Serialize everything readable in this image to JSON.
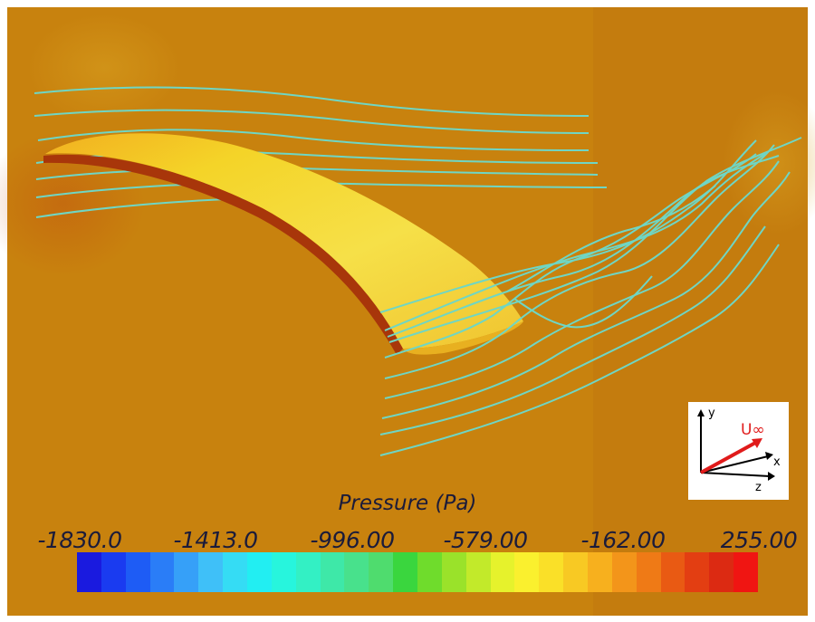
{
  "colorbar": {
    "title": "Pressure (Pa)",
    "ticks": [
      "-1830.0",
      "-1413.0",
      "-996.00",
      "-579.00",
      "-162.00",
      "255.00"
    ],
    "colors": [
      "#1a1adf",
      "#1a3bf0",
      "#1e5cf5",
      "#2a7df7",
      "#36a0f8",
      "#3fc0f8",
      "#35dcf4",
      "#22eef2",
      "#27f5dd",
      "#33f0c4",
      "#3ee8a8",
      "#48e18c",
      "#4fdc6e",
      "#3ad63e",
      "#6fdc2c",
      "#9ae22a",
      "#c2ea2a",
      "#e6f22c",
      "#faf02e",
      "#fae028",
      "#f8c923",
      "#f7b01e",
      "#f3951a",
      "#ef7a16",
      "#e95a13",
      "#e33e12",
      "#dc2a12",
      "#f01512"
    ]
  },
  "axes_indicator": {
    "y_label": "y",
    "x_label": "x",
    "z_label": "z",
    "flow_label": "U∞",
    "flow_color": "#e01b1b"
  },
  "colors": {
    "background": "#c8810c",
    "streamline": "#6fd6c4",
    "blade_surface": "#f0d020",
    "blade_edge": "#a83a0a"
  }
}
